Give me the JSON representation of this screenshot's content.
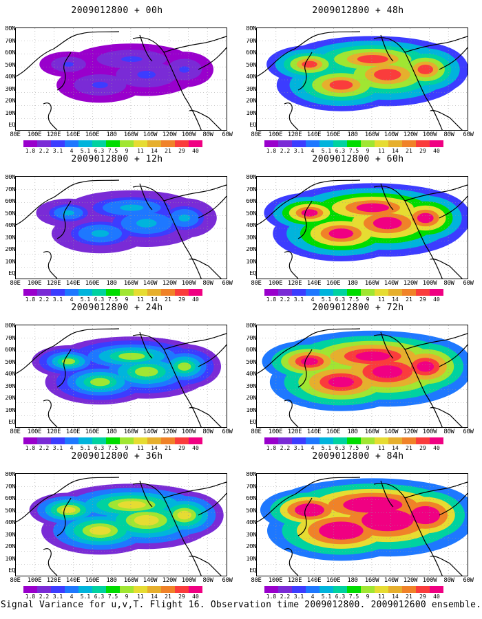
{
  "panels": [
    {
      "title": "2009012800 + 00h",
      "level": 0.15
    },
    {
      "title": "2009012800 + 48h",
      "level": 0.7
    },
    {
      "title": "2009012800 + 12h",
      "level": 0.28
    },
    {
      "title": "2009012800 + 60h",
      "level": 0.8
    },
    {
      "title": "2009012800 + 24h",
      "level": 0.45
    },
    {
      "title": "2009012800 + 72h",
      "level": 0.88
    },
    {
      "title": "2009012800 + 36h",
      "level": 0.55
    },
    {
      "title": "2009012800 + 84h",
      "level": 0.95
    }
  ],
  "lat_labels": [
    "80N",
    "70N",
    "60N",
    "50N",
    "40N",
    "30N",
    "20N",
    "10N",
    "EQ"
  ],
  "lon_labels": [
    "80E",
    "100E",
    "120E",
    "140E",
    "160E",
    "180",
    "160W",
    "140W",
    "120W",
    "100W",
    "80W",
    "60W"
  ],
  "colorbar": {
    "colors": [
      "#9900cc",
      "#7a2bd6",
      "#3c3cff",
      "#1e78ff",
      "#00b4dc",
      "#00d2a0",
      "#00dc00",
      "#a0e632",
      "#e6dc32",
      "#e6af2d",
      "#f08228",
      "#fa3c3c",
      "#f00082"
    ],
    "labels": [
      "1.8",
      "2.2",
      "3.1",
      "4",
      "5.1",
      "6.3",
      "7.5",
      "9",
      "11",
      "14",
      "21",
      "29",
      "40"
    ]
  },
  "footer": "Signal Variance for u,v,T. Flight 16. Observation time 2009012800. 2009012600 ensemble."
}
